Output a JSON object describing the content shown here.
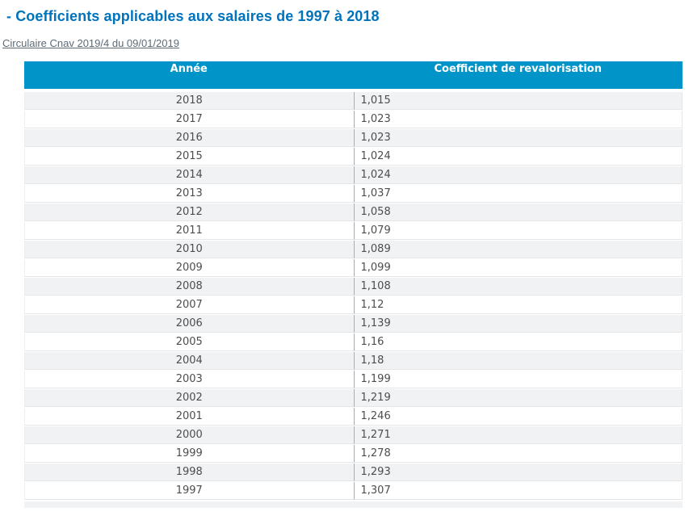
{
  "page": {
    "title": "- Coefficients applicables aux salaires de 1997 à 2018",
    "link_label": "Circulaire Cnav 2019/4 du 09/01/2019"
  },
  "table": {
    "headers": [
      "Année",
      "Coefficient de revalorisation"
    ],
    "rows": [
      {
        "annee": "2018",
        "coefficient": "1,015"
      },
      {
        "annee": "2017",
        "coefficient": "1,023"
      },
      {
        "annee": "2016",
        "coefficient": "1,023"
      },
      {
        "annee": "2015",
        "coefficient": "1,024"
      },
      {
        "annee": "2014",
        "coefficient": "1,024"
      },
      {
        "annee": "2013",
        "coefficient": "1,037"
      },
      {
        "annee": "2012",
        "coefficient": "1,058"
      },
      {
        "annee": "2011",
        "coefficient": "1,079"
      },
      {
        "annee": "2010",
        "coefficient": "1,089"
      },
      {
        "annee": "2009",
        "coefficient": "1,099"
      },
      {
        "annee": "2008",
        "coefficient": "1,108"
      },
      {
        "annee": "2007",
        "coefficient": "1,12"
      },
      {
        "annee": "2006",
        "coefficient": "1,139"
      },
      {
        "annee": "2005",
        "coefficient": "1,16"
      },
      {
        "annee": "2004",
        "coefficient": "1,18"
      },
      {
        "annee": "2003",
        "coefficient": "1,199"
      },
      {
        "annee": "2002",
        "coefficient": "1,219"
      },
      {
        "annee": "2001",
        "coefficient": "1,246"
      },
      {
        "annee": "2000",
        "coefficient": "1,271"
      },
      {
        "annee": "1999",
        "coefficient": "1,278"
      },
      {
        "annee": "1998",
        "coefficient": "1,293"
      },
      {
        "annee": "1997",
        "coefficient": "1,307"
      }
    ]
  },
  "colors": {
    "header_background": "#0094c8",
    "header_text": "#ffffff",
    "title_text": "#0073bd",
    "link_text": "#5d6b77",
    "cell_text": "#4d4d4d",
    "alt_row_background": "#f1f2f3",
    "column_divider": "#a9adb1",
    "row_border": "#e4e6e8"
  }
}
